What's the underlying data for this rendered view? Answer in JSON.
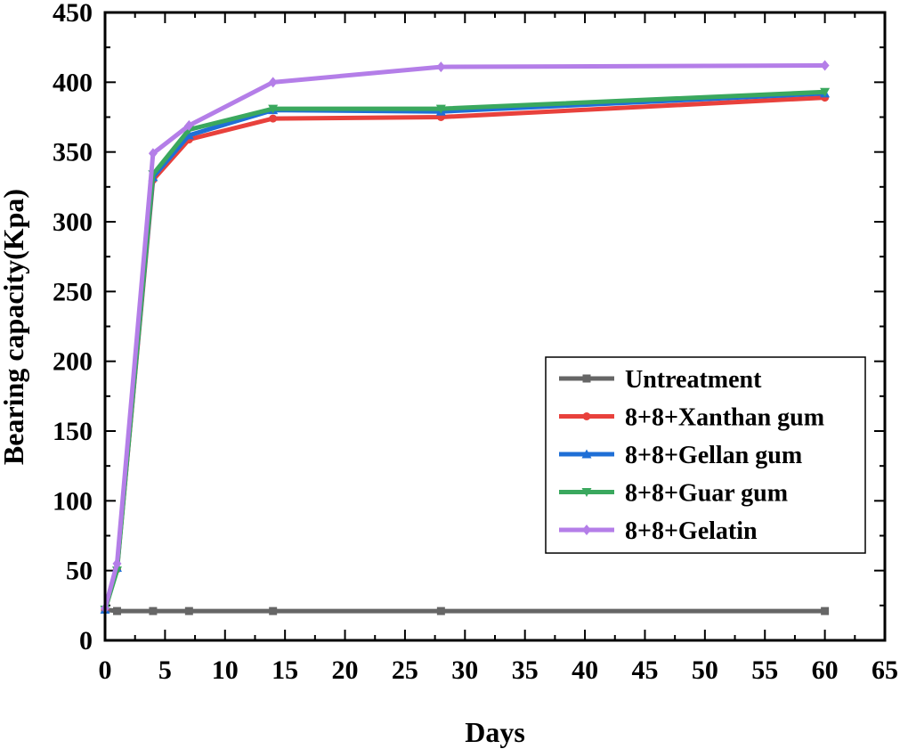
{
  "chart_data": {
    "type": "line",
    "title": "",
    "xlabel": "Days",
    "ylabel": "Bearing capacity(Kpa)",
    "xlim": [
      0,
      65
    ],
    "ylim": [
      0,
      450
    ],
    "xticks": [
      0,
      5,
      10,
      15,
      20,
      25,
      30,
      35,
      40,
      45,
      50,
      55,
      60,
      65
    ],
    "yticks": [
      0,
      50,
      100,
      150,
      200,
      250,
      300,
      350,
      400,
      450
    ],
    "x": [
      0,
      1,
      4,
      7,
      14,
      28,
      60
    ],
    "grid": false,
    "legend_position": "right",
    "series": [
      {
        "name": "Untreatment",
        "color": "#666666",
        "marker": "square",
        "values": [
          22,
          21,
          21,
          21,
          21,
          21,
          21
        ]
      },
      {
        "name": "8+8+Xanthan gum",
        "color": "#e8413c",
        "marker": "circle",
        "values": [
          22,
          51,
          330,
          359,
          374,
          375,
          389
        ]
      },
      {
        "name": "8+8+Gellan gum",
        "color": "#1f6fd6",
        "marker": "triangle-up",
        "values": [
          22,
          52,
          332,
          362,
          380,
          379,
          392
        ]
      },
      {
        "name": "8+8+Guar gum",
        "color": "#3aa85e",
        "marker": "triangle-down",
        "values": [
          22,
          50,
          334,
          366,
          381,
          381,
          393
        ]
      },
      {
        "name": "8+8+Gelatin",
        "color": "#b47ee8",
        "marker": "diamond",
        "values": [
          23,
          55,
          349,
          369,
          400,
          411,
          412
        ]
      }
    ]
  }
}
